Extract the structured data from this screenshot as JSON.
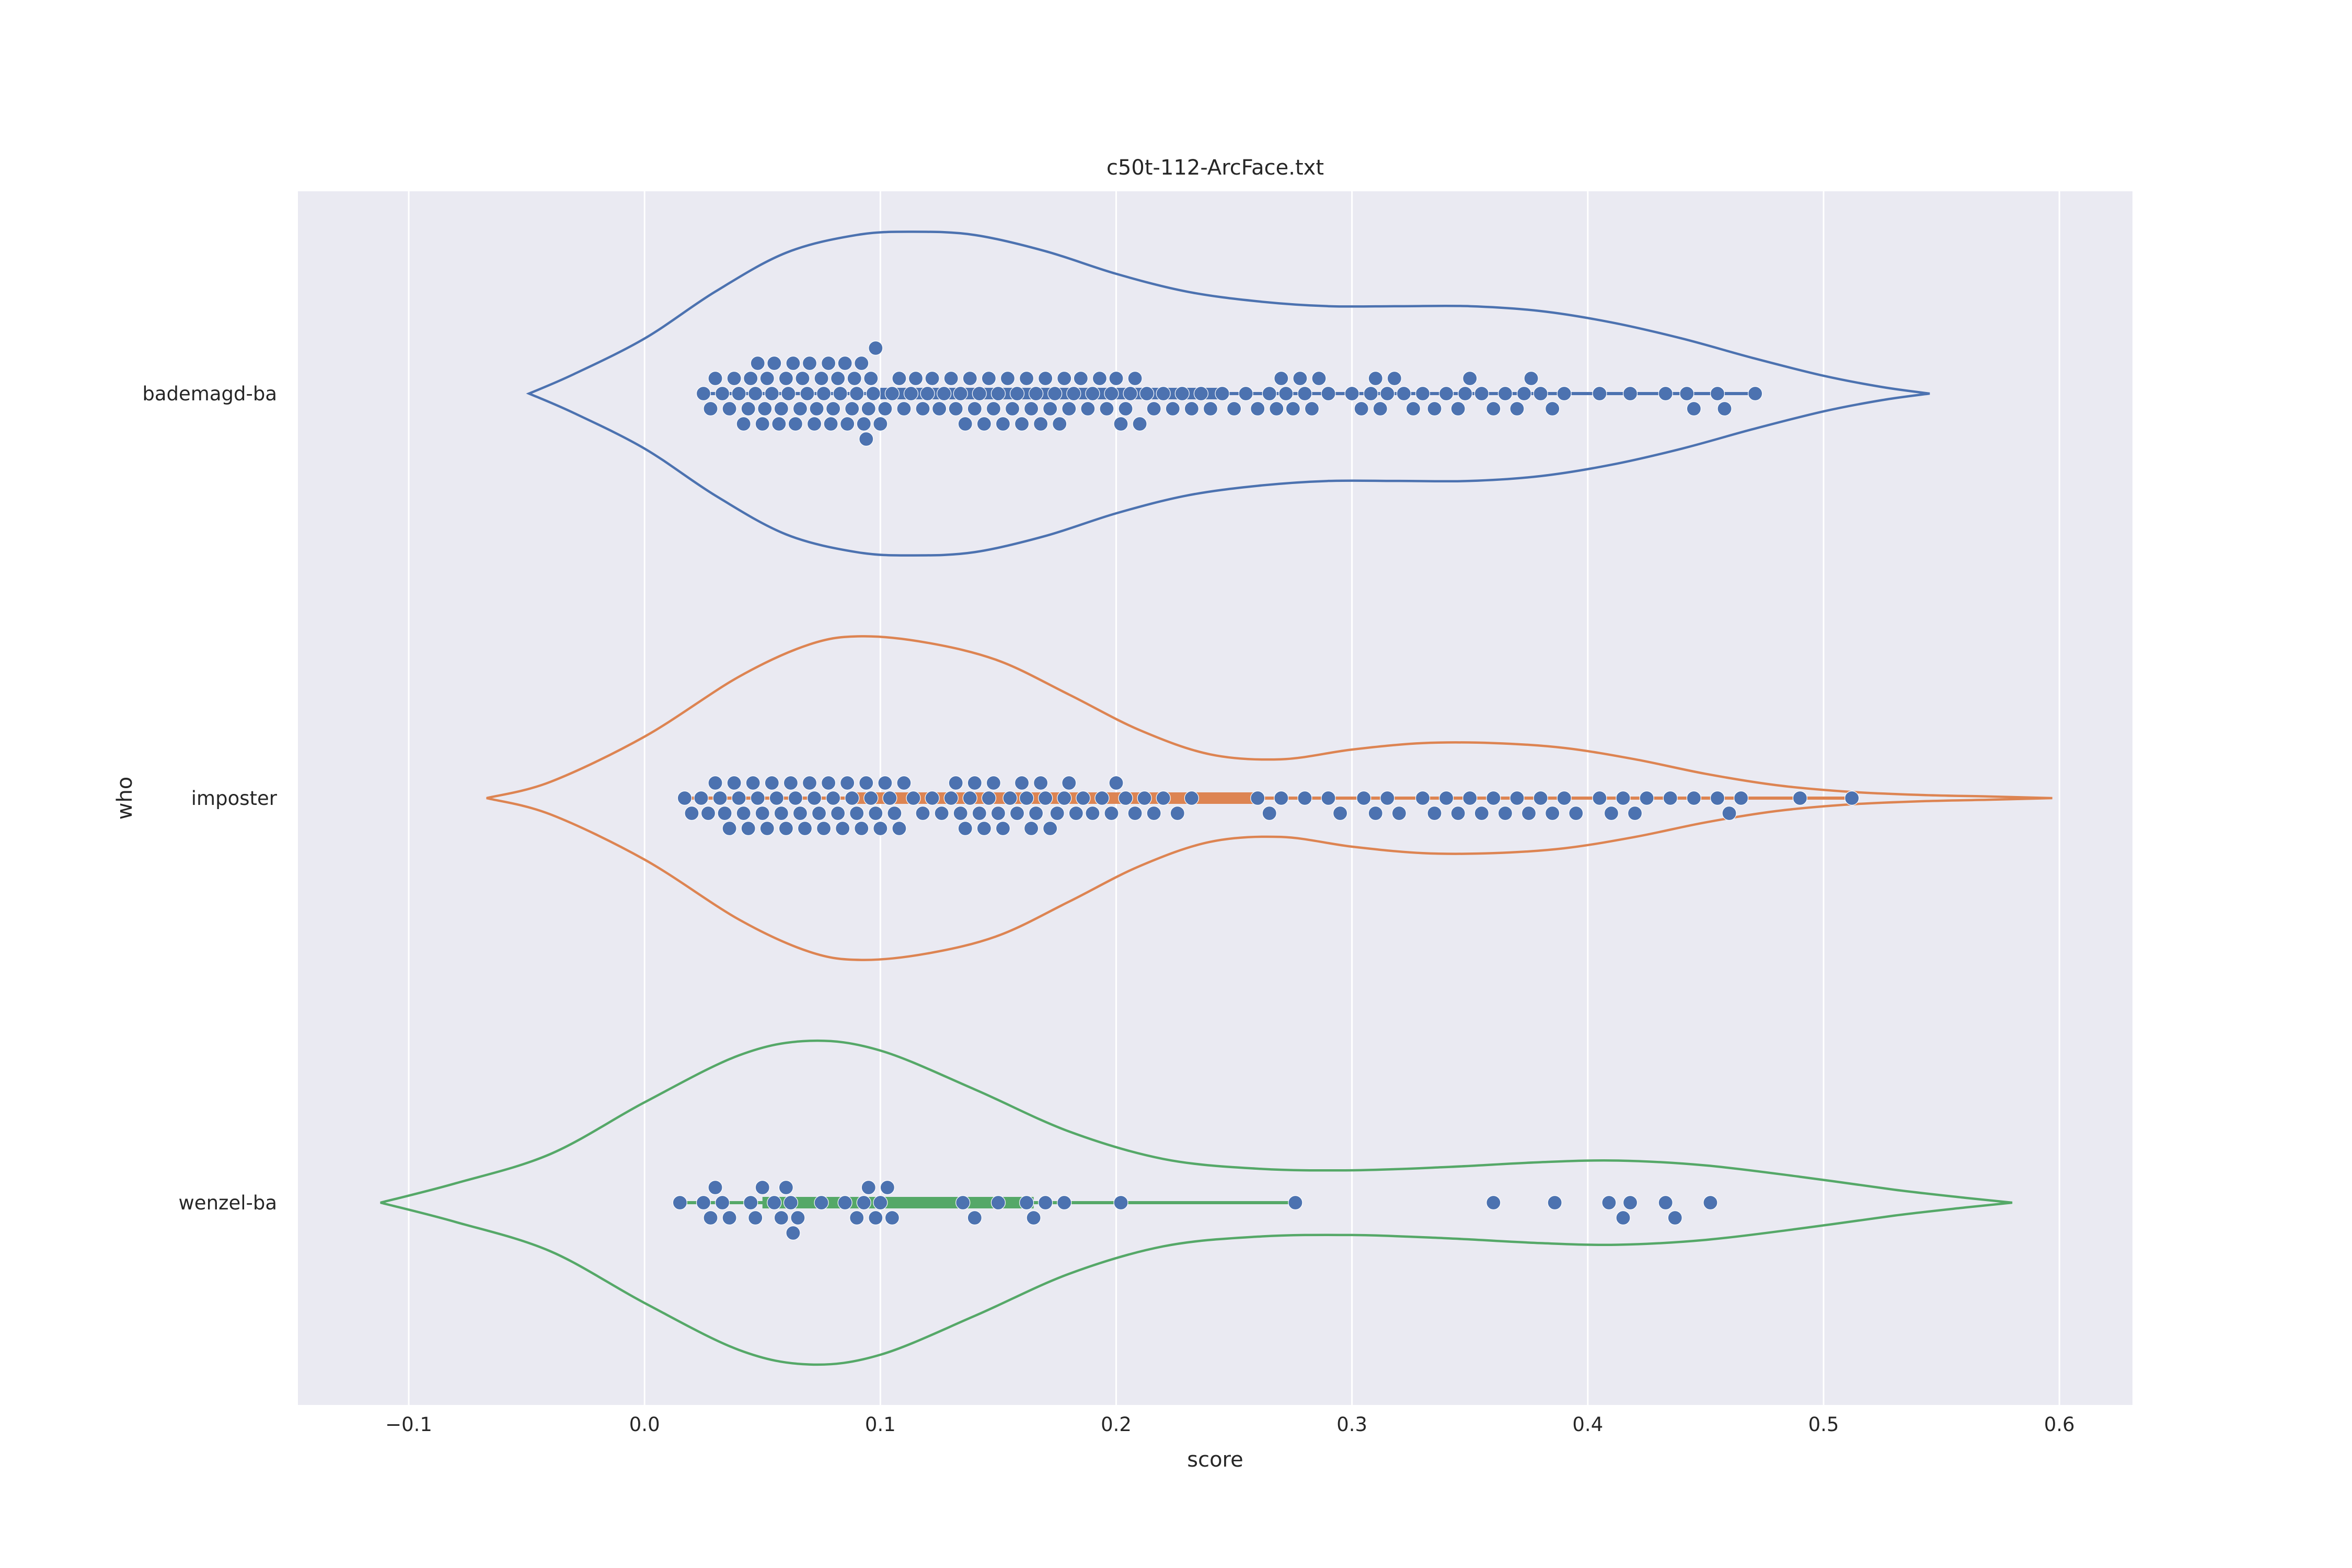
{
  "chart_data": {
    "type": "violin",
    "title": "c50t-112-ArcFace.txt",
    "xlabel": "score",
    "ylabel": "who",
    "xlim": [
      -0.147,
      0.631
    ],
    "xticks": [
      -0.1,
      0.0,
      0.1,
      0.2,
      0.3,
      0.4,
      0.5,
      0.6
    ],
    "xtick_labels": [
      "−0.1",
      "0.0",
      "0.1",
      "0.2",
      "0.3",
      "0.4",
      "0.5",
      "0.6"
    ],
    "grid": true,
    "background": "#eaeaf2",
    "point_color": "#4c72b0",
    "categories": [
      "bademagd-ba",
      "imposter",
      "wenzel-ba"
    ],
    "series": [
      {
        "name": "bademagd-ba",
        "color": "#4c72b0",
        "violin_x": [
          -0.049,
          -0.03,
          0.0,
          0.03,
          0.06,
          0.09,
          0.114,
          0.14,
          0.17,
          0.2,
          0.23,
          0.26,
          0.29,
          0.32,
          0.35,
          0.38,
          0.41,
          0.44,
          0.47,
          0.5,
          0.525,
          0.545
        ],
        "violin_density": [
          0.0,
          0.12,
          0.34,
          0.63,
          0.87,
          0.98,
          1.0,
          0.98,
          0.88,
          0.74,
          0.63,
          0.57,
          0.54,
          0.54,
          0.54,
          0.51,
          0.44,
          0.34,
          0.22,
          0.11,
          0.04,
          0.0
        ],
        "points": [
          0.025,
          0.028,
          0.03,
          0.033,
          0.036,
          0.038,
          0.04,
          0.042,
          0.044,
          0.045,
          0.047,
          0.048,
          0.05,
          0.051,
          0.052,
          0.054,
          0.055,
          0.057,
          0.058,
          0.06,
          0.061,
          0.063,
          0.064,
          0.066,
          0.067,
          0.069,
          0.07,
          0.072,
          0.073,
          0.075,
          0.076,
          0.078,
          0.079,
          0.08,
          0.082,
          0.083,
          0.085,
          0.086,
          0.088,
          0.089,
          0.09,
          0.092,
          0.093,
          0.094,
          0.095,
          0.096,
          0.097,
          0.098,
          0.1,
          0.102,
          0.105,
          0.108,
          0.11,
          0.113,
          0.115,
          0.118,
          0.12,
          0.122,
          0.125,
          0.127,
          0.13,
          0.132,
          0.134,
          0.136,
          0.138,
          0.14,
          0.142,
          0.144,
          0.146,
          0.148,
          0.15,
          0.152,
          0.154,
          0.156,
          0.158,
          0.16,
          0.162,
          0.164,
          0.166,
          0.168,
          0.17,
          0.172,
          0.174,
          0.176,
          0.178,
          0.18,
          0.182,
          0.185,
          0.188,
          0.19,
          0.193,
          0.196,
          0.198,
          0.2,
          0.202,
          0.204,
          0.206,
          0.208,
          0.21,
          0.213,
          0.216,
          0.22,
          0.224,
          0.228,
          0.232,
          0.236,
          0.24,
          0.245,
          0.25,
          0.255,
          0.26,
          0.265,
          0.268,
          0.27,
          0.272,
          0.275,
          0.278,
          0.28,
          0.283,
          0.286,
          0.29,
          0.3,
          0.304,
          0.308,
          0.31,
          0.312,
          0.315,
          0.318,
          0.322,
          0.326,
          0.33,
          0.335,
          0.34,
          0.345,
          0.348,
          0.35,
          0.355,
          0.36,
          0.365,
          0.37,
          0.373,
          0.376,
          0.38,
          0.385,
          0.39,
          0.405,
          0.418,
          0.433,
          0.442,
          0.445,
          0.455,
          0.458,
          0.471
        ]
      },
      {
        "name": "imposter",
        "color": "#dd8452",
        "violin_x": [
          -0.067,
          -0.04,
          0.0,
          0.04,
          0.07,
          0.092,
          0.12,
          0.15,
          0.18,
          0.21,
          0.24,
          0.27,
          0.3,
          0.33,
          0.36,
          0.39,
          0.42,
          0.45,
          0.48,
          0.51,
          0.54,
          0.57,
          0.597
        ],
        "violin_density": [
          0.0,
          0.1,
          0.38,
          0.75,
          0.95,
          1.0,
          0.96,
          0.85,
          0.64,
          0.42,
          0.27,
          0.24,
          0.3,
          0.34,
          0.34,
          0.31,
          0.24,
          0.15,
          0.08,
          0.04,
          0.02,
          0.01,
          0.0
        ],
        "points": [
          0.017,
          0.02,
          0.024,
          0.027,
          0.03,
          0.032,
          0.034,
          0.036,
          0.038,
          0.04,
          0.042,
          0.044,
          0.046,
          0.048,
          0.05,
          0.052,
          0.054,
          0.056,
          0.058,
          0.06,
          0.062,
          0.064,
          0.066,
          0.068,
          0.07,
          0.072,
          0.074,
          0.076,
          0.078,
          0.08,
          0.082,
          0.084,
          0.086,
          0.088,
          0.09,
          0.092,
          0.094,
          0.096,
          0.098,
          0.1,
          0.102,
          0.104,
          0.106,
          0.108,
          0.11,
          0.114,
          0.118,
          0.122,
          0.126,
          0.13,
          0.132,
          0.134,
          0.136,
          0.138,
          0.14,
          0.142,
          0.144,
          0.146,
          0.148,
          0.15,
          0.152,
          0.155,
          0.158,
          0.16,
          0.162,
          0.164,
          0.166,
          0.168,
          0.17,
          0.172,
          0.175,
          0.178,
          0.18,
          0.183,
          0.186,
          0.19,
          0.194,
          0.198,
          0.2,
          0.204,
          0.208,
          0.212,
          0.216,
          0.22,
          0.226,
          0.232,
          0.26,
          0.265,
          0.27,
          0.28,
          0.29,
          0.295,
          0.305,
          0.31,
          0.315,
          0.32,
          0.33,
          0.335,
          0.34,
          0.345,
          0.35,
          0.355,
          0.36,
          0.365,
          0.37,
          0.375,
          0.38,
          0.385,
          0.39,
          0.395,
          0.405,
          0.41,
          0.415,
          0.42,
          0.425,
          0.435,
          0.445,
          0.455,
          0.46,
          0.465,
          0.49,
          0.512
        ]
      },
      {
        "name": "wenzel-ba",
        "color": "#55a868",
        "violin_x": [
          -0.112,
          -0.08,
          -0.04,
          0.0,
          0.04,
          0.07,
          0.1,
          0.14,
          0.18,
          0.22,
          0.26,
          0.3,
          0.34,
          0.38,
          0.413,
          0.45,
          0.49,
          0.53,
          0.56,
          0.58
        ],
        "violin_density": [
          0.0,
          0.12,
          0.3,
          0.62,
          0.91,
          1.0,
          0.94,
          0.7,
          0.44,
          0.27,
          0.21,
          0.2,
          0.22,
          0.25,
          0.26,
          0.23,
          0.16,
          0.08,
          0.03,
          0.0
        ],
        "points": [
          0.015,
          0.025,
          0.028,
          0.03,
          0.033,
          0.036,
          0.045,
          0.047,
          0.05,
          0.055,
          0.058,
          0.06,
          0.062,
          0.063,
          0.065,
          0.075,
          0.085,
          0.09,
          0.093,
          0.095,
          0.098,
          0.1,
          0.103,
          0.105,
          0.135,
          0.14,
          0.15,
          0.162,
          0.165,
          0.17,
          0.178,
          0.202,
          0.276,
          0.36,
          0.386,
          0.409,
          0.415,
          0.418,
          0.433,
          0.437,
          0.452
        ]
      }
    ],
    "medians_box": [
      {
        "name": "bademagd-ba",
        "q1": 0.1,
        "q3": 0.245,
        "whisker_low": 0.025,
        "whisker_high": 0.47
      },
      {
        "name": "imposter",
        "q1": 0.09,
        "q3": 0.26,
        "whisker_low": 0.017,
        "whisker_high": 0.512
      },
      {
        "name": "wenzel-ba",
        "q1": 0.05,
        "q3": 0.165,
        "whisker_low": 0.015,
        "whisker_high": 0.276
      }
    ]
  }
}
